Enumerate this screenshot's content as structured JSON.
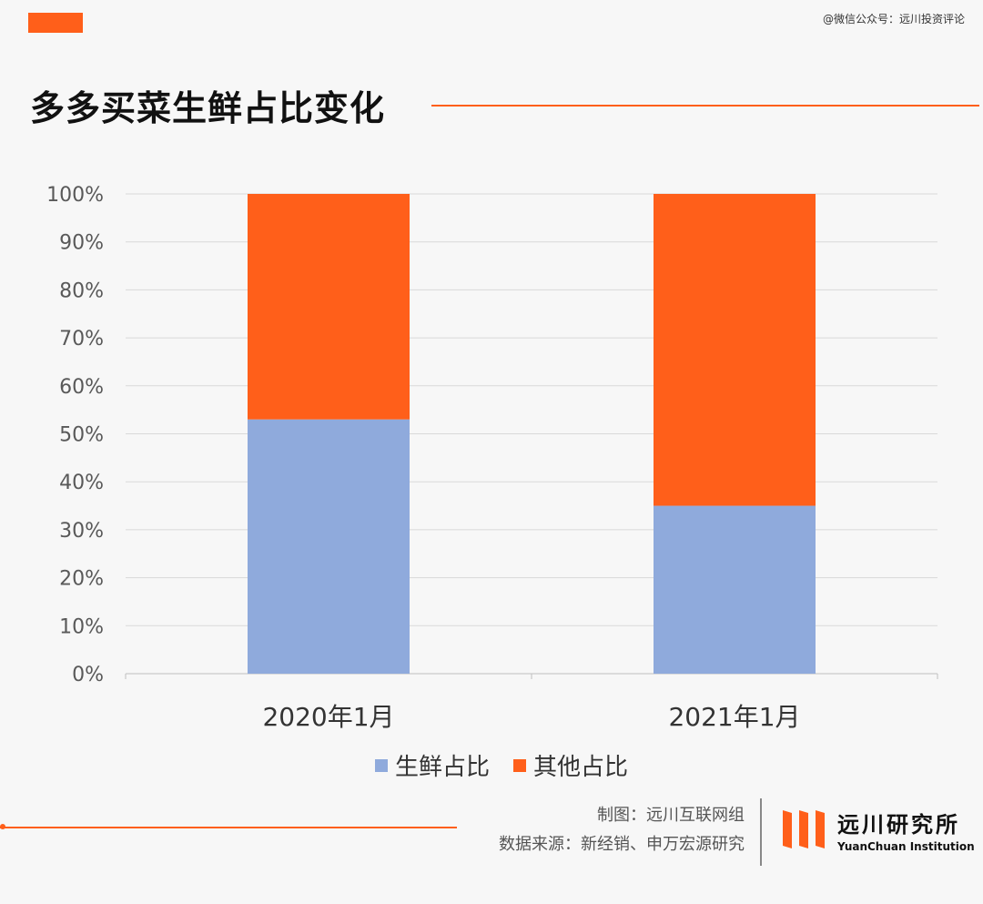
{
  "header": {
    "watermark": "@微信公众号：远川投资评论",
    "title": "多多买菜生鲜占比变化"
  },
  "chart_data": {
    "type": "bar",
    "stacked": true,
    "categories": [
      "2020年1月",
      "2021年1月"
    ],
    "series": [
      {
        "name": "生鲜占比",
        "values": [
          53,
          35
        ],
        "color": "#8faadc"
      },
      {
        "name": "其他占比",
        "values": [
          47,
          65
        ],
        "color": "#ff5f1a"
      }
    ],
    "ylim": [
      0,
      100
    ],
    "yticks": [
      "0%",
      "10%",
      "20%",
      "30%",
      "40%",
      "50%",
      "60%",
      "70%",
      "80%",
      "90%",
      "100%"
    ],
    "grid": true,
    "legend": "bottom"
  },
  "footer": {
    "made_by": "制图：远川互联网组",
    "source": "数据来源：新经销、申万宏源研究"
  },
  "logo": {
    "name_cn": "远川研究所",
    "name_en": "YuanChuan Institution"
  },
  "colors": {
    "accent": "#ff5f1a",
    "fresh": "#8faadc"
  }
}
